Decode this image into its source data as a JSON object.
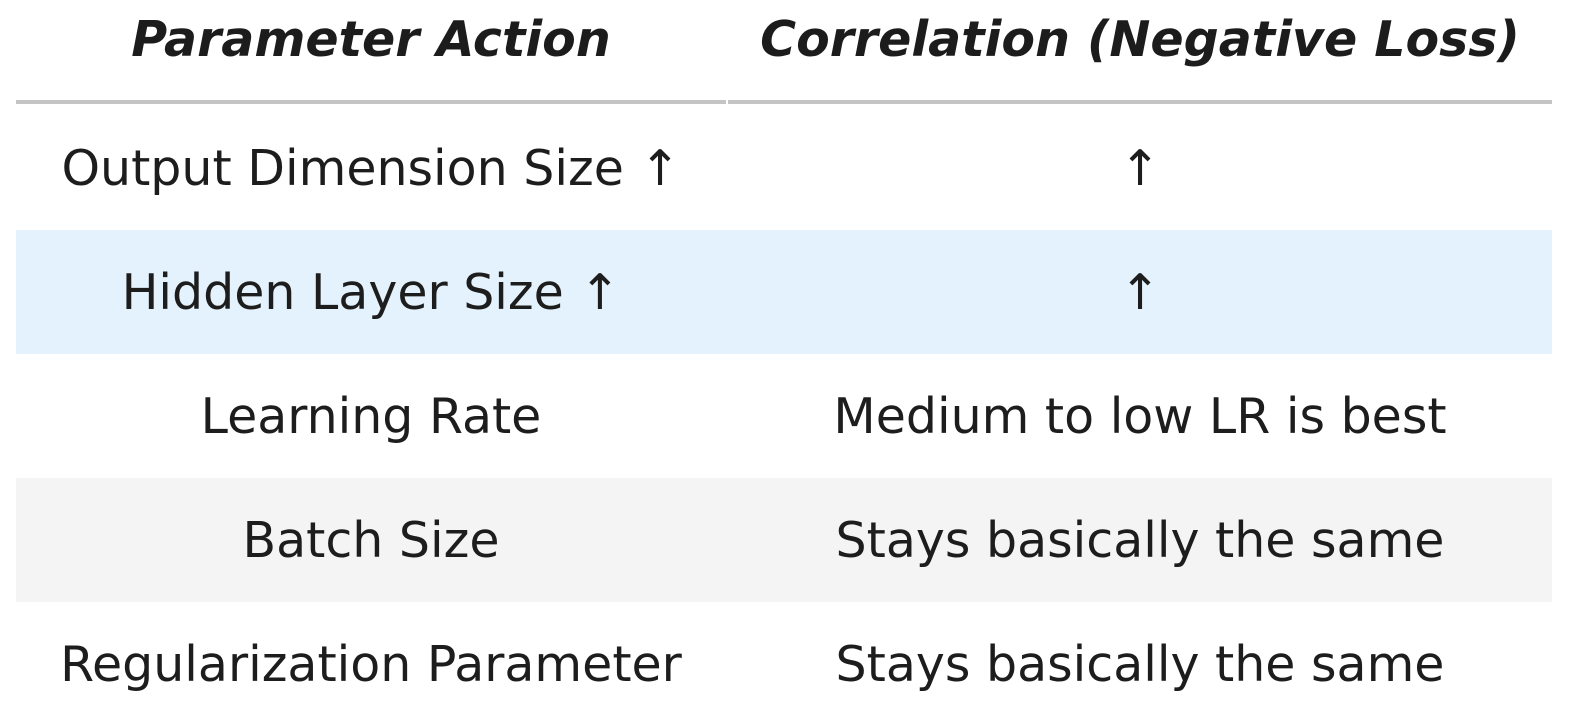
{
  "table": {
    "headers": [
      "Parameter Action",
      "Correlation (Negative Loss)"
    ],
    "rows": [
      {
        "parameter": "Output Dimension Size ↑",
        "correlation": "↑",
        "style": "plain"
      },
      {
        "parameter": "Hidden Layer Size ↑",
        "correlation": "↑",
        "style": "highlight"
      },
      {
        "parameter": "Learning Rate",
        "correlation": "Medium to low LR is best",
        "style": "plain"
      },
      {
        "parameter": "Batch Size",
        "correlation": "Stays basically the same",
        "style": "shaded"
      },
      {
        "parameter": "Regularization Parameter",
        "correlation": "Stays basically the same",
        "style": "plain"
      }
    ]
  },
  "colors": {
    "highlight_row": "#e3f2fc",
    "shaded_row": "#f4f4f4",
    "header_rule": "#c4c4c4"
  }
}
